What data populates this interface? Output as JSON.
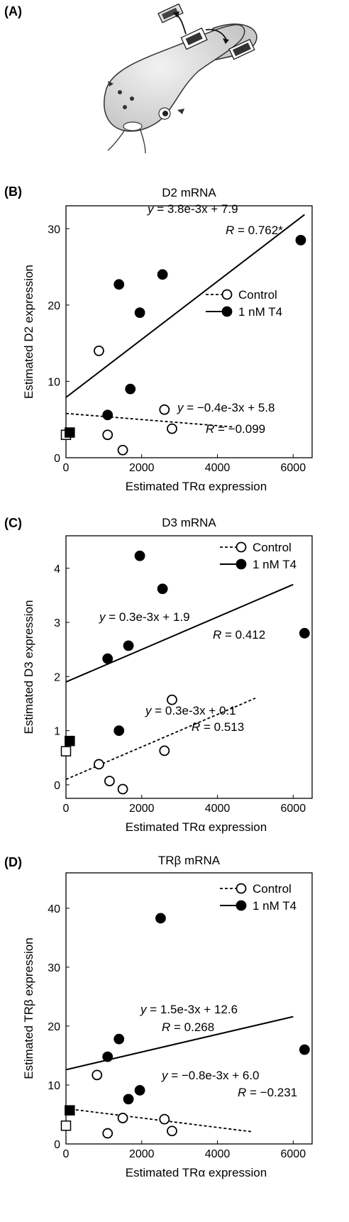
{
  "panel_labels": [
    "(A)",
    "(B)",
    "(C)",
    "(D)"
  ],
  "chart_data": [
    {
      "type": "scatter",
      "panel": "(B)",
      "title": "D2 mRNA",
      "xlabel": "Estimated TRα expression",
      "ylabel": "Estimated D2 expression",
      "xlim": [
        0,
        6500
      ],
      "ylim": [
        0,
        33
      ],
      "xticks": [
        0,
        2000,
        4000,
        6000
      ],
      "yticks": [
        0,
        10,
        20,
        30
      ],
      "legend": "right",
      "series": [
        {
          "name": "Control",
          "marker": "open-circle",
          "line": "dashed",
          "points": [
            [
              870,
              14
            ],
            [
              1100,
              3
            ],
            [
              1500,
              1
            ],
            [
              2600,
              6.3
            ],
            [
              2800,
              3.8
            ]
          ],
          "zero_point": [
            0,
            3
          ],
          "fit": {
            "slope": -0.0004,
            "intercept": 5.8,
            "x_end": 4450
          },
          "equation_text": "y = −0.4e-3x + 5.8",
          "r_text": "R = −0.099"
        },
        {
          "name": "1 nM T4",
          "marker": "filled-circle",
          "line": "solid",
          "points": [
            [
              1100,
              5.6
            ],
            [
              1400,
              22.7
            ],
            [
              1700,
              9
            ],
            [
              1950,
              19
            ],
            [
              2550,
              24
            ],
            [
              6200,
              28.5
            ]
          ],
          "zero_point": [
            100,
            3.3
          ],
          "fit": {
            "slope": 0.0038,
            "intercept": 7.9,
            "x_end": 6300
          },
          "equation_text": "y = 3.8e-3x + 7.9",
          "r_text": "R = 0.762*"
        }
      ]
    },
    {
      "type": "scatter",
      "panel": "(C)",
      "title": "D3 mRNA",
      "xlabel": "Estimated TRα expression",
      "ylabel": "Estimated D3 expression",
      "xlim": [
        0,
        6500
      ],
      "ylim": [
        -0.25,
        4.6
      ],
      "xticks": [
        0,
        2000,
        4000,
        6000
      ],
      "yticks": [
        0,
        1,
        2,
        3,
        4
      ],
      "legend": "top-right",
      "series": [
        {
          "name": "Control",
          "marker": "open-circle",
          "line": "dashed",
          "points": [
            [
              870,
              0.38
            ],
            [
              1150,
              0.07
            ],
            [
              1500,
              -0.08
            ],
            [
              2600,
              0.63
            ],
            [
              2800,
              1.57
            ]
          ],
          "zero_point": [
            0,
            0.62
          ],
          "fit": {
            "slope": 0.0003,
            "intercept": 0.1,
            "x_end": 5000
          },
          "equation_text": "y = 0.3e-3x + 0.1",
          "r_text": "R = 0.513"
        },
        {
          "name": "1 nM T4",
          "marker": "filled-circle",
          "line": "solid",
          "points": [
            [
              1100,
              2.33
            ],
            [
              1400,
              1
            ],
            [
              1650,
              2.57
            ],
            [
              1950,
              4.23
            ],
            [
              2550,
              3.62
            ],
            [
              6300,
              2.8
            ]
          ],
          "zero_point": [
            100,
            0.81
          ],
          "fit": {
            "slope": 0.0003,
            "intercept": 1.9,
            "x_end": 6000
          },
          "equation_text": "y = 0.3e-3x + 1.9",
          "r_text": "R = 0.412"
        }
      ]
    },
    {
      "type": "scatter",
      "panel": "(D)",
      "title": "TRβ mRNA",
      "xlabel": "Estimated TRα expression",
      "ylabel": "Estimated TRβ expression",
      "xlim": [
        0,
        6500
      ],
      "ylim": [
        0,
        46
      ],
      "xticks": [
        0,
        2000,
        4000,
        6000
      ],
      "yticks": [
        0,
        10,
        20,
        30,
        40
      ],
      "legend": "top-right",
      "series": [
        {
          "name": "Control",
          "marker": "open-circle",
          "line": "dashed",
          "points": [
            [
              820,
              11.7
            ],
            [
              1100,
              1.8
            ],
            [
              1500,
              4.4
            ],
            [
              2600,
              4.2
            ],
            [
              2800,
              2.2
            ]
          ],
          "zero_point": [
            0,
            3.1
          ],
          "fit": {
            "slope": -0.0008,
            "intercept": 6.0,
            "x_end": 4900
          },
          "equation_text": "y = −0.8e-3x + 6.0",
          "r_text": "R = −0.231"
        },
        {
          "name": "1 nM T4",
          "marker": "filled-circle",
          "line": "solid",
          "points": [
            [
              1100,
              14.8
            ],
            [
              1400,
              17.8
            ],
            [
              1650,
              7.6
            ],
            [
              1950,
              9.1
            ],
            [
              2500,
              38.3
            ],
            [
              6300,
              16
            ]
          ],
          "zero_point": [
            100,
            5.7
          ],
          "fit": {
            "slope": 0.0015,
            "intercept": 12.6,
            "x_end": 6000
          },
          "equation_text": "y = 1.5e-3x + 12.6",
          "r_text": "R = 0.268"
        }
      ]
    }
  ]
}
